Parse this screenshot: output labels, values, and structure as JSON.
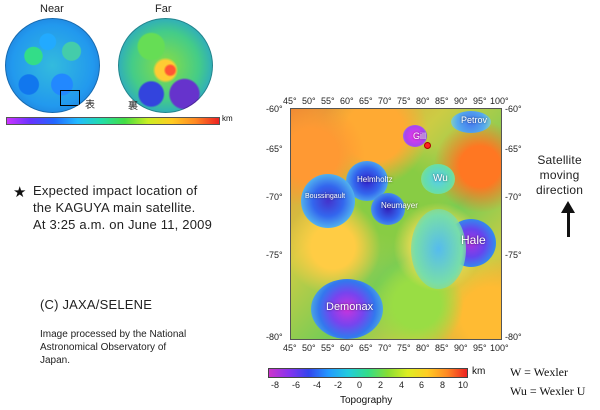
{
  "globes": {
    "near_label": "Near",
    "far_label": "Far",
    "near_kanji": "表",
    "far_kanji": "裏",
    "scale_unit": "km"
  },
  "caption": {
    "line1": "Expected impact location of",
    "line2": "the KAGUYA main satellite.",
    "line3": "At 3:25 a.m. on June 11, 2009"
  },
  "credit": "(C) JAXA/SELENE",
  "processing": {
    "line1": "Image processed by the National",
    "line2": "Astronomical Observatory of",
    "line3": "Japan."
  },
  "map": {
    "lon_ticks": [
      "45°",
      "50°",
      "55°",
      "60°",
      "65°",
      "70°",
      "75°",
      "80°",
      "85°",
      "90°",
      "95°",
      "100°"
    ],
    "lat_ticks": [
      "-60°",
      "-65°",
      "-70°",
      "-75°",
      "-80°"
    ],
    "craters": {
      "gill": "Gill",
      "petrov": "Petrov",
      "helmholtz": "Helmholtz",
      "wu": "Wu",
      "boussingault": "Boussingault",
      "neumayer": "Neumayer",
      "hale": "Hale",
      "demonax": "Demonax"
    },
    "impact_lon": 80.4,
    "impact_lat": -65.5
  },
  "direction": {
    "line1": "Satellite",
    "line2": "moving",
    "line3": "direction"
  },
  "topography": {
    "ticks": [
      "-8",
      "-6",
      "-4",
      "-2",
      "0",
      "2",
      "4",
      "6",
      "8",
      "10"
    ],
    "unit": "km",
    "title": "Topography"
  },
  "legend": {
    "w": "W = Wexler",
    "wu": "Wu = Wexler U"
  },
  "colors": {
    "star": "#111111",
    "impact": "#ff2222"
  }
}
